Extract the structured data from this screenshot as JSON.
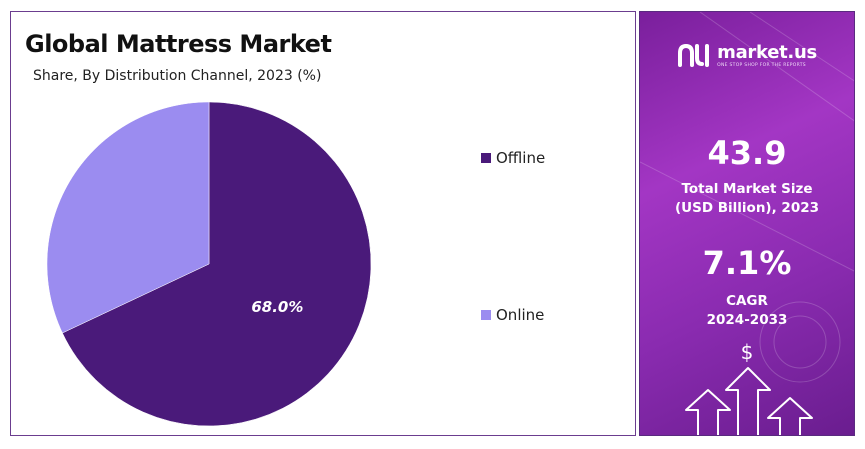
{
  "chart": {
    "title": "Global Mattress Market",
    "subtitle": "Share, By Distribution Channel, 2023 (%)"
  },
  "chart_data": {
    "type": "pie",
    "title": "Global Mattress Market",
    "subtitle": "Share, By Distribution Channel, 2023 (%)",
    "categories": [
      "Offline",
      "Online"
    ],
    "values": [
      68.0,
      32.0
    ],
    "colors": [
      "#4a1a7a",
      "#9b8cf0"
    ],
    "data_labels": [
      "68.0%",
      ""
    ],
    "legend": {
      "position": "right",
      "entries": [
        "Offline",
        "Online"
      ]
    }
  },
  "brand": {
    "name": "market.us",
    "tagline": "ONE STOP SHOP FOR THE REPORTS",
    "icon": "market-us-logo-icon"
  },
  "stats": {
    "market_size_value": "43.9",
    "market_size_label_line1": "Total Market Size",
    "market_size_label_line2": "(USD Billion), 2023",
    "cagr_value": "7.1%",
    "cagr_label_line1": "CAGR",
    "cagr_label_line2": "2024-2033",
    "currency_symbol": "$"
  },
  "colors": {
    "primary": "#4a1a7a",
    "secondary": "#9b8cf0",
    "panel_purple": "#9a30c0"
  }
}
